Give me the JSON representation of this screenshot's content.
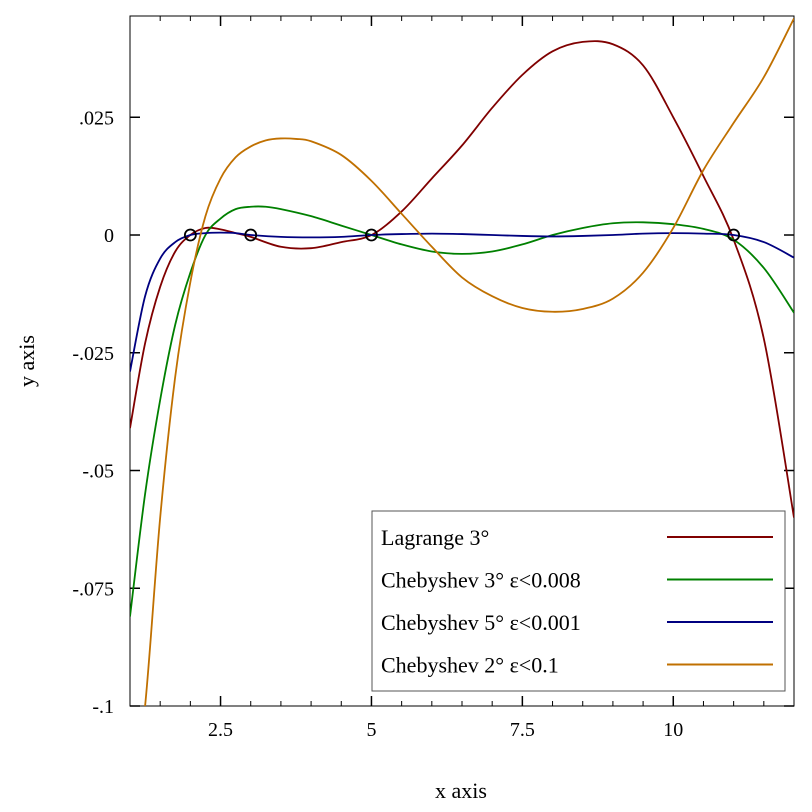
{
  "chart_data": {
    "type": "line",
    "title": "",
    "xlabel": "x axis",
    "ylabel": "y axis",
    "xlim": [
      1,
      12
    ],
    "ylim": [
      -0.1,
      0.0465
    ],
    "x_ticks": [
      {
        "value": 2.5,
        "label": "2.5"
      },
      {
        "value": 5,
        "label": "5"
      },
      {
        "value": 7.5,
        "label": "7.5"
      },
      {
        "value": 10,
        "label": "10"
      }
    ],
    "y_ticks": [
      {
        "value": 0.025,
        "label": ".025"
      },
      {
        "value": 0,
        "label": "0"
      },
      {
        "value": -0.025,
        "label": "-.025"
      },
      {
        "value": -0.05,
        "label": "-.05"
      },
      {
        "value": -0.075,
        "label": "-.075"
      },
      {
        "value": -0.1,
        "label": "-.1"
      }
    ],
    "legend_position": "bottom-right",
    "grid": false,
    "series": [
      {
        "name": "Lagrange 3°",
        "color": "#800000",
        "x": [
          1.0,
          1.25,
          1.5,
          1.75,
          2.0,
          2.25,
          2.5,
          2.75,
          3.0,
          3.5,
          4.0,
          4.5,
          5.0,
          5.5,
          6.0,
          6.5,
          7.0,
          7.5,
          8.0,
          8.5,
          9.0,
          9.5,
          10.0,
          10.5,
          11.0,
          11.5,
          12.0
        ],
        "y": [
          -0.041,
          -0.023,
          -0.011,
          -0.0035,
          0.0,
          0.0015,
          0.0012,
          0.0004,
          -0.0004,
          -0.0025,
          -0.0028,
          -0.0015,
          0.0,
          0.005,
          0.012,
          0.019,
          0.027,
          0.034,
          0.039,
          0.041,
          0.0405,
          0.036,
          0.025,
          0.0125,
          -0.001,
          -0.022,
          -0.06
        ]
      },
      {
        "name": "Chebyshev 3° ε<0.008",
        "color": "#008000",
        "x": [
          1.0,
          1.25,
          1.5,
          1.75,
          2.0,
          2.25,
          2.5,
          2.75,
          3.0,
          3.25,
          3.5,
          4.0,
          4.5,
          5.0,
          5.5,
          6.0,
          6.5,
          7.0,
          7.5,
          8.0,
          8.5,
          9.0,
          9.5,
          10.0,
          10.5,
          11.0,
          11.5,
          12.0
        ],
        "y": [
          -0.081,
          -0.055,
          -0.035,
          -0.019,
          -0.008,
          0.0,
          0.0035,
          0.0055,
          0.006,
          0.006,
          0.0055,
          0.004,
          0.002,
          0.0,
          -0.002,
          -0.0035,
          -0.004,
          -0.0035,
          -0.002,
          0.0,
          0.0015,
          0.0025,
          0.0027,
          0.0023,
          0.0013,
          -0.001,
          -0.007,
          -0.0165
        ]
      },
      {
        "name": "Chebyshev 5° ε<0.001",
        "color": "#000080",
        "x": [
          1.0,
          1.25,
          1.5,
          1.75,
          2.0,
          2.25,
          2.5,
          2.75,
          3.0,
          3.5,
          4.0,
          4.5,
          5.0,
          5.5,
          6.0,
          6.5,
          7.0,
          7.5,
          8.0,
          8.5,
          9.0,
          9.5,
          10.0,
          10.5,
          11.0,
          11.5,
          12.0
        ],
        "y": [
          -0.029,
          -0.013,
          -0.005,
          -0.0015,
          0.0,
          0.0004,
          0.0005,
          0.0004,
          0.0,
          -0.0004,
          -0.0005,
          -0.0004,
          0.0,
          0.0002,
          0.0003,
          0.0002,
          0.0,
          -0.0002,
          -0.0003,
          -0.0002,
          0.0,
          0.0003,
          0.0004,
          0.0003,
          0.0,
          -0.0015,
          -0.0048
        ]
      },
      {
        "name": "Chebyshev 2° ε<0.1",
        "color": "#c07000",
        "x": [
          1.0,
          1.25,
          1.5,
          1.75,
          2.0,
          2.25,
          2.5,
          2.75,
          3.0,
          3.25,
          3.5,
          3.75,
          4.0,
          4.5,
          5.0,
          5.5,
          6.0,
          6.5,
          7.0,
          7.5,
          8.0,
          8.5,
          9.0,
          9.5,
          10.0,
          10.5,
          11.0,
          11.5,
          12.0
        ],
        "y": [
          -0.125,
          -0.1,
          -0.06,
          -0.03,
          -0.01,
          0.004,
          0.012,
          0.0165,
          0.0188,
          0.0201,
          0.0205,
          0.0204,
          0.0199,
          0.017,
          0.0115,
          0.0045,
          -0.0025,
          -0.009,
          -0.013,
          -0.0155,
          -0.0163,
          -0.0157,
          -0.0135,
          -0.008,
          0.0015,
          0.0138,
          0.0238,
          0.0335,
          0.046
        ]
      }
    ],
    "points": {
      "x": [
        2,
        3,
        5,
        11
      ],
      "y": [
        0,
        0,
        0,
        0
      ]
    }
  }
}
